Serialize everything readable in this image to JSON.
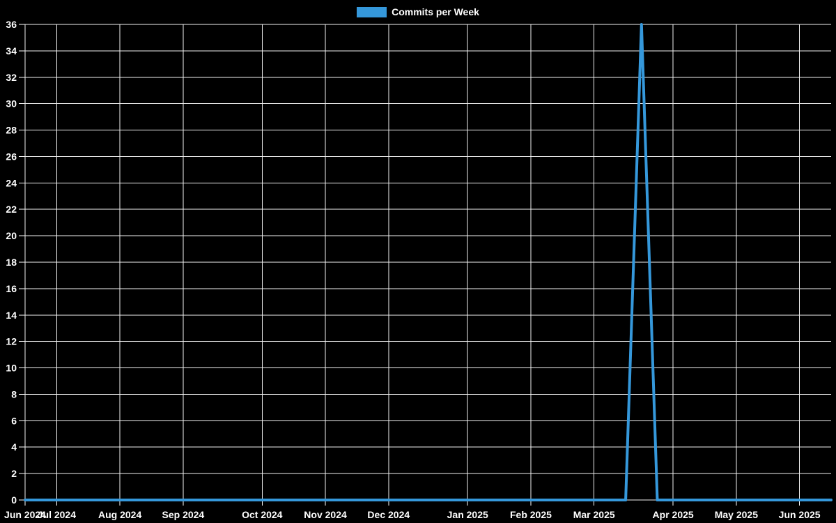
{
  "app": {
    "background_color": "#000000"
  },
  "legend": {
    "label": "Commits per Week"
  },
  "chart_data": {
    "type": "line",
    "title": "Commits per Week",
    "legend_position": "top-center",
    "background_color": "#000000",
    "grid": true,
    "grid_color": "#f2f2f2",
    "tick_color": "#ffffff",
    "text_color": "#ffffff",
    "x_unit": "week",
    "xlabel": "",
    "ylabel": "",
    "ylim": [
      0,
      36
    ],
    "y_ticks": [
      0,
      2,
      4,
      6,
      8,
      10,
      12,
      14,
      16,
      18,
      20,
      22,
      24,
      26,
      28,
      30,
      32,
      34,
      36
    ],
    "x_tick_labels": [
      "Jun 2024",
      "Jul 2024",
      "Aug 2024",
      "Sep 2024",
      "Oct 2024",
      "Nov 2024",
      "Dec 2024",
      "Jan 2025",
      "Feb 2025",
      "Mar 2025",
      "Apr 2025",
      "May 2025",
      "Jun 2025"
    ],
    "x_tick_week_indices": [
      0,
      2,
      6,
      10,
      15,
      19,
      23,
      28,
      32,
      36,
      41,
      45,
      49
    ],
    "series": [
      {
        "name": "Commits per Week",
        "color": "#3598db",
        "line_width": 4,
        "fill": false,
        "values": [
          0,
          0,
          0,
          0,
          0,
          0,
          0,
          0,
          0,
          0,
          0,
          0,
          0,
          0,
          0,
          0,
          0,
          0,
          0,
          0,
          0,
          0,
          0,
          0,
          0,
          0,
          0,
          0,
          0,
          0,
          0,
          0,
          0,
          0,
          0,
          0,
          0,
          0,
          0,
          36,
          0,
          0,
          0,
          0,
          0,
          0,
          0,
          0,
          0,
          0,
          0,
          0
        ]
      }
    ]
  }
}
